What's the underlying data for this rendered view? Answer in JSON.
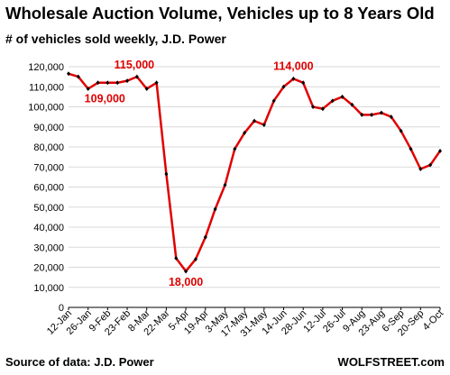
{
  "title": "Wholesale Auction Volume, Vehicles up to 8 Years Old",
  "subtitle": "# of vehicles sold weekly, J.D. Power",
  "source": "Source of data: J.D. Power",
  "brand": "WOLFSTREET.com",
  "colors": {
    "line": "#e00000",
    "marker": "#000000",
    "grid": "#d9d9d9",
    "annotation": "#e00000"
  },
  "chart_data": {
    "type": "line",
    "title": "Wholesale Auction Volume, Vehicles up to 8 Years Old",
    "subtitle": "# of vehicles sold weekly, J.D. Power",
    "xlabel": "",
    "ylabel": "",
    "ylim": [
      0,
      120000
    ],
    "yticks": [
      0,
      10000,
      20000,
      30000,
      40000,
      50000,
      60000,
      70000,
      80000,
      90000,
      100000,
      110000,
      120000
    ],
    "ytick_labels": [
      "0",
      "10,000",
      "20,000",
      "30,000",
      "40,000",
      "50,000",
      "60,000",
      "70,000",
      "80,000",
      "90,000",
      "100,000",
      "110,000",
      "120,000"
    ],
    "grid": true,
    "x": [
      "12-Jan",
      "19-Jan",
      "26-Jan",
      "2-Feb",
      "9-Feb",
      "16-Feb",
      "23-Feb",
      "1-Mar",
      "8-Mar",
      "15-Mar",
      "22-Mar",
      "29-Mar",
      "5-Apr",
      "12-Apr",
      "19-Apr",
      "26-Apr",
      "3-May",
      "10-May",
      "17-May",
      "24-May",
      "31-May",
      "7-Jun",
      "14-Jun",
      "21-Jun",
      "28-Jun",
      "5-Jul",
      "12-Jul",
      "19-Jul",
      "26-Jul",
      "2-Aug",
      "9-Aug",
      "16-Aug",
      "23-Aug",
      "30-Aug",
      "6-Sep",
      "13-Sep",
      "20-Sep",
      "27-Sep",
      "4-Oct"
    ],
    "xtick_labels": [
      "12-Jan",
      "26-Jan",
      "9-Feb",
      "23-Feb",
      "8-Mar",
      "22-Mar",
      "5-Apr",
      "19-Apr",
      "3-May",
      "17-May",
      "31-May",
      "14-Jun",
      "28-Jun",
      "12-Jul",
      "26-Jul",
      "9-Aug",
      "23-Aug",
      "6-Sep",
      "20-Sep",
      "4-Oct"
    ],
    "series": [
      {
        "values": [
          116500,
          115000,
          109000,
          112000,
          112000,
          112000,
          113000,
          115000,
          109000,
          112000,
          66500,
          24500,
          18000,
          24000,
          35000,
          49000,
          61000,
          79000,
          87000,
          93000,
          91000,
          103000,
          110000,
          114000,
          112000,
          100000,
          99000,
          103000,
          105000,
          101000,
          96000,
          96000,
          97000,
          95000,
          88000,
          79000,
          69000,
          71000,
          78000
        ]
      }
    ],
    "annotations": [
      {
        "text": "109,000",
        "x": "26-Jan"
      },
      {
        "text": "115,000",
        "x": "1-Mar"
      },
      {
        "text": "18,000",
        "x": "5-Apr"
      },
      {
        "text": "114,000",
        "x": "21-Jun"
      }
    ]
  }
}
